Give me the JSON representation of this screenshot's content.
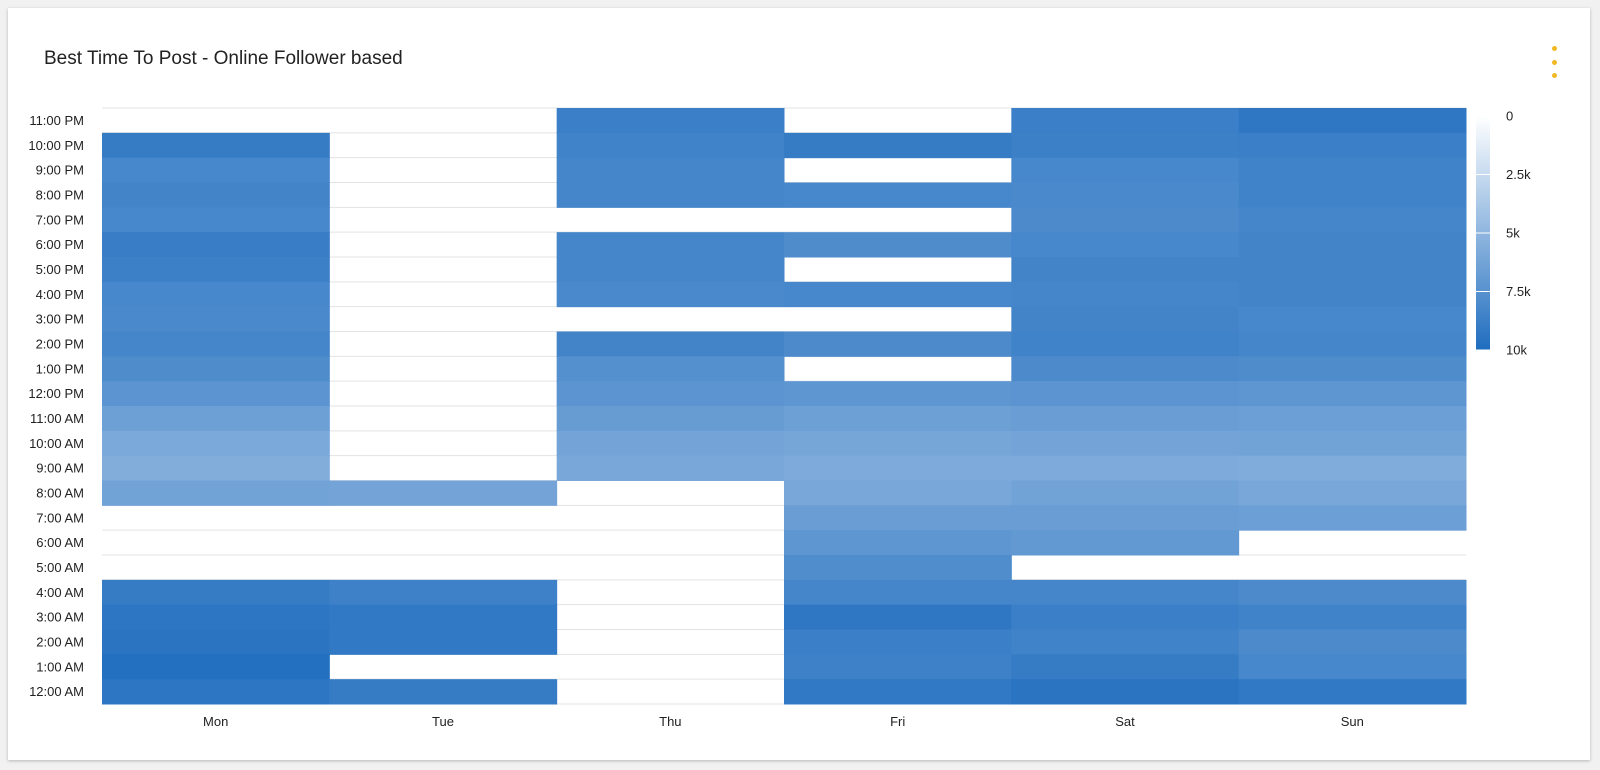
{
  "card": {
    "title": "Best Time To Post - Online Follower based",
    "menu_icon": "more-vertical-icon",
    "menu_color": "#f2b824"
  },
  "chart_data": {
    "type": "heatmap",
    "title": "Best Time To Post - Online Follower based",
    "columns": [
      "Mon",
      "Tue",
      "Thu",
      "Fri",
      "Sat",
      "Sun"
    ],
    "rows": [
      "12:00 AM",
      "1:00 AM",
      "2:00 AM",
      "3:00 AM",
      "4:00 AM",
      "5:00 AM",
      "6:00 AM",
      "7:00 AM",
      "8:00 AM",
      "9:00 AM",
      "10:00 AM",
      "11:00 AM",
      "12:00 PM",
      "1:00 PM",
      "2:00 PM",
      "3:00 PM",
      "4:00 PM",
      "5:00 PM",
      "6:00 PM",
      "7:00 PM",
      "8:00 PM",
      "9:00 PM",
      "10:00 PM",
      "11:00 PM"
    ],
    "values": [
      [
        9400,
        9000,
        null,
        9200,
        9500,
        9200
      ],
      [
        9800,
        null,
        null,
        8600,
        9000,
        8200
      ],
      [
        9500,
        9200,
        null,
        8800,
        8500,
        8000
      ],
      [
        9400,
        9200,
        null,
        9300,
        8800,
        8500
      ],
      [
        9000,
        8600,
        null,
        8300,
        8300,
        8000
      ],
      [
        null,
        null,
        null,
        7800,
        null,
        null
      ],
      [
        null,
        null,
        null,
        7200,
        7000,
        null
      ],
      [
        null,
        null,
        null,
        6700,
        6700,
        6600
      ],
      [
        6300,
        6200,
        null,
        6000,
        6300,
        6000
      ],
      [
        5600,
        null,
        6000,
        5800,
        5800,
        5700
      ],
      [
        5900,
        null,
        6200,
        6100,
        6200,
        6300
      ],
      [
        6500,
        null,
        6800,
        6500,
        6700,
        6600
      ],
      [
        7300,
        null,
        7300,
        7200,
        7300,
        7200
      ],
      [
        7900,
        null,
        7600,
        null,
        8000,
        7900
      ],
      [
        8300,
        null,
        8400,
        8000,
        8500,
        8300
      ],
      [
        8100,
        null,
        null,
        null,
        8400,
        8200
      ],
      [
        8200,
        null,
        8100,
        8200,
        8300,
        8400
      ],
      [
        8700,
        null,
        8300,
        null,
        8400,
        8400
      ],
      [
        8900,
        null,
        8300,
        7900,
        8200,
        8400
      ],
      [
        8200,
        null,
        null,
        null,
        8000,
        8300
      ],
      [
        8400,
        null,
        8300,
        8200,
        8100,
        8500
      ],
      [
        8200,
        null,
        8300,
        null,
        8200,
        8500
      ],
      [
        9000,
        null,
        8500,
        9000,
        8700,
        8800
      ],
      [
        null,
        null,
        8800,
        null,
        8800,
        9300
      ]
    ],
    "color_scale": {
      "min": 0,
      "max": 10000,
      "low_color": "#ffffff",
      "high_color": "#1f6dbf"
    },
    "legend": {
      "position": "right",
      "ticks": [
        "0",
        "2.5k",
        "5k",
        "7.5k",
        "10k"
      ]
    },
    "grid": true
  }
}
